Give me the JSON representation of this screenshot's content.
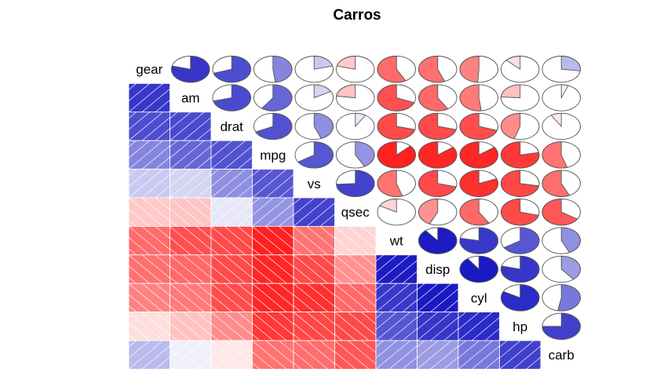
{
  "chart_data": {
    "type": "heatmap",
    "title": "Carros",
    "variables": [
      "gear",
      "am",
      "drat",
      "mpg",
      "vs",
      "qsec",
      "wt",
      "disp",
      "cyl",
      "hp",
      "carb"
    ],
    "matrix": [
      [
        1.0,
        0.79,
        0.7,
        0.48,
        0.21,
        -0.21,
        -0.58,
        -0.56,
        -0.49,
        -0.13,
        0.27
      ],
      [
        0.79,
        1.0,
        0.71,
        0.6,
        0.17,
        -0.23,
        -0.69,
        -0.59,
        -0.52,
        -0.24,
        0.06
      ],
      [
        0.7,
        0.71,
        1.0,
        0.68,
        0.44,
        0.09,
        -0.71,
        -0.71,
        -0.7,
        -0.45,
        -0.09
      ],
      [
        0.48,
        0.6,
        0.68,
        1.0,
        0.66,
        0.42,
        -0.87,
        -0.85,
        -0.85,
        -0.78,
        -0.55
      ],
      [
        0.21,
        0.17,
        0.44,
        0.66,
        1.0,
        0.74,
        -0.55,
        -0.71,
        -0.81,
        -0.72,
        -0.57
      ],
      [
        -0.21,
        -0.23,
        0.09,
        0.42,
        0.74,
        1.0,
        -0.17,
        -0.43,
        -0.59,
        -0.71,
        -0.66
      ],
      [
        -0.58,
        -0.69,
        -0.71,
        -0.87,
        -0.55,
        -0.17,
        1.0,
        0.89,
        0.78,
        0.66,
        0.43
      ],
      [
        -0.56,
        -0.59,
        -0.71,
        -0.85,
        -0.71,
        -0.43,
        0.89,
        1.0,
        0.9,
        0.79,
        0.39
      ],
      [
        -0.49,
        -0.52,
        -0.7,
        -0.85,
        -0.81,
        -0.59,
        0.78,
        0.9,
        1.0,
        0.83,
        0.53
      ],
      [
        -0.13,
        -0.24,
        -0.45,
        -0.78,
        -0.72,
        -0.71,
        0.66,
        0.79,
        0.83,
        1.0,
        0.75
      ],
      [
        0.27,
        0.06,
        -0.09,
        -0.55,
        -0.57,
        -0.66,
        0.43,
        0.39,
        0.53,
        0.75,
        1.0
      ]
    ],
    "lower_panel": "shade",
    "upper_panel": "pie",
    "diagonal_panel": "text",
    "colors": {
      "positive": "#0000bb",
      "negative": "#ff0000",
      "neutral": "#ffffff"
    }
  }
}
